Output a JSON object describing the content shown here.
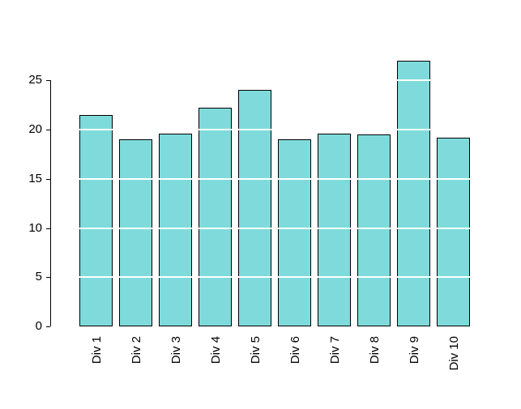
{
  "chart_data": {
    "type": "bar",
    "title": "",
    "xlabel": "",
    "ylabel": "",
    "categories": [
      "Div 1",
      "Div 2",
      "Div 3",
      "Div 4",
      "Div 5",
      "Div 6",
      "Div 7",
      "Div 8",
      "Div 9",
      "Div 10"
    ],
    "values": [
      21.5,
      19,
      19.6,
      22.2,
      24,
      19,
      19.6,
      19.5,
      27,
      19.2
    ],
    "ylim": [
      0,
      28.4
    ],
    "yticks": [
      0,
      5,
      10,
      15,
      20,
      25
    ],
    "grid": {
      "on": true,
      "at": [
        5,
        10,
        15,
        20,
        25
      ],
      "color": "#FFFFFF"
    },
    "legend_position": "none",
    "bar_color": "#7FDBDB",
    "bar_border_color": "#000000",
    "axis_color": "#000000",
    "background_color": "#FFFFFF",
    "x_label_rotation": "vertical-bottom-to-top"
  }
}
